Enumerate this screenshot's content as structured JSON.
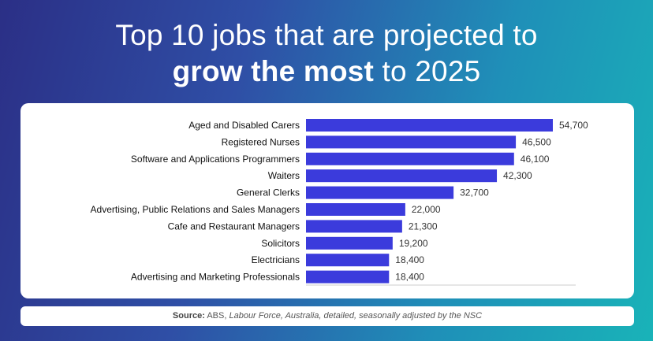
{
  "title": {
    "line1": "Top 10 jobs that are projected to",
    "line2_bold": "grow the most",
    "line2_rest": " to 2025"
  },
  "source": {
    "label": "Source:",
    "org": " ABS, ",
    "publication": "Labour Force, Australia, detailed, seasonally adjusted by the NSC"
  },
  "colors": {
    "bar": "#3b3bdc",
    "axis": "#cccccc"
  },
  "chart_data": {
    "type": "bar",
    "orientation": "horizontal",
    "categories": [
      "Aged and Disabled Carers",
      "Registered Nurses",
      "Software and Applications Programmers",
      "Waiters",
      "General Clerks",
      "Advertising, Public Relations and Sales Managers",
      "Cafe and Restaurant Managers",
      "Solicitors",
      "Electricians",
      "Advertising and Marketing Professionals"
    ],
    "values": [
      54700,
      46500,
      46100,
      42300,
      32700,
      22000,
      21300,
      19200,
      18400,
      18400
    ],
    "value_labels": [
      "54,700",
      "46,500",
      "46,100",
      "42,300",
      "32,700",
      "22,000",
      "21,300",
      "19,200",
      "18,400",
      "18,400"
    ],
    "title": "",
    "xlabel": "",
    "ylabel": "",
    "grid": false,
    "legend": "none"
  }
}
